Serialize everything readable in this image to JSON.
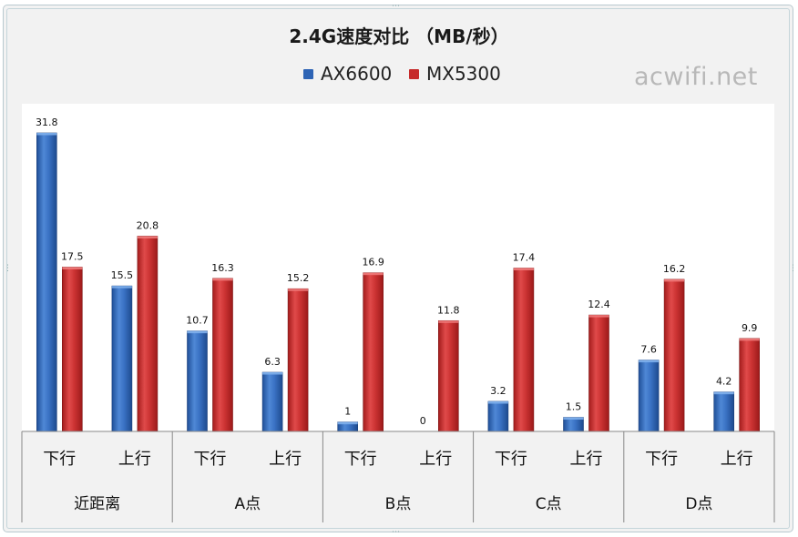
{
  "watermark": "acwifi.net",
  "chart_data": {
    "type": "bar",
    "title": "2.4G速度对比 （MB/秒）",
    "legend_position": "top",
    "grid": false,
    "ylim": [
      0,
      33
    ],
    "groups": [
      {
        "label": "近距离",
        "subcategories": [
          "下行",
          "上行"
        ]
      },
      {
        "label": "A点",
        "subcategories": [
          "下行",
          "上行"
        ]
      },
      {
        "label": "B点",
        "subcategories": [
          "下行",
          "上行"
        ]
      },
      {
        "label": "C点",
        "subcategories": [
          "下行",
          "上行"
        ]
      },
      {
        "label": "D点",
        "subcategories": [
          "下行",
          "上行"
        ]
      }
    ],
    "categories": [
      "近距离 下行",
      "近距离 上行",
      "A点 下行",
      "A点 上行",
      "B点 下行",
      "B点 上行",
      "C点 下行",
      "C点 上行",
      "D点 下行",
      "D点 上行"
    ],
    "series": [
      {
        "name": "AX6600",
        "color": "#2e64b5",
        "values": [
          31.8,
          15.5,
          10.7,
          6.3,
          1,
          0,
          3.2,
          1.5,
          7.6,
          4.2
        ],
        "labels": [
          "31.8",
          "15.5",
          "10.7",
          "6.3",
          "1",
          "0",
          "3.2",
          "1.5",
          "7.6",
          "4.2"
        ]
      },
      {
        "name": "MX5300",
        "color": "#c62a2a",
        "values": [
          17.5,
          20.8,
          16.3,
          15.2,
          16.9,
          11.8,
          17.4,
          12.4,
          16.2,
          9.9
        ],
        "labels": [
          "17.5",
          "20.8",
          "16.3",
          "15.2",
          "16.9",
          "11.8",
          "17.4",
          "12.4",
          "16.2",
          "9.9"
        ]
      }
    ]
  }
}
